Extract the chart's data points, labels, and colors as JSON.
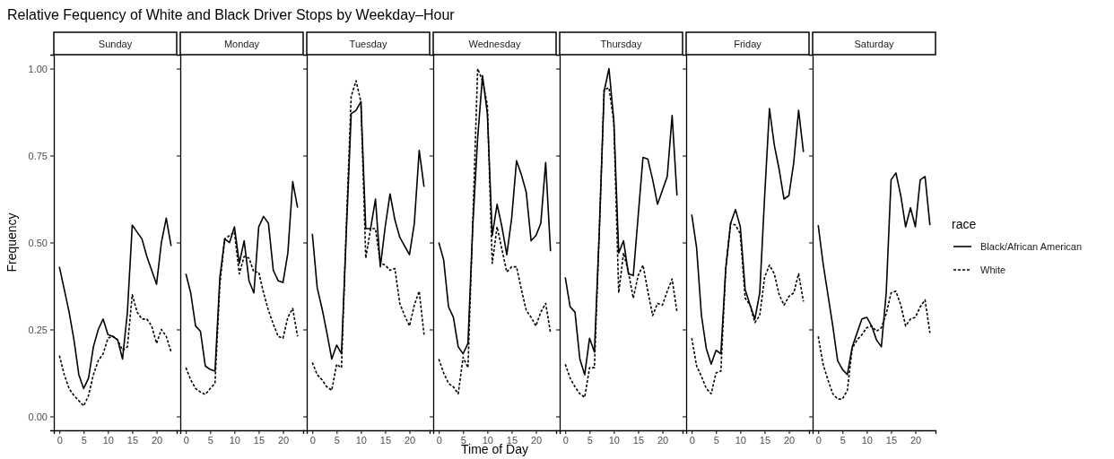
{
  "chart_data": [
    {
      "type": "line",
      "title": "Sunday",
      "annotations": [
        "Relative Fequency of White and Black Driver Stops by Weekday–Hour"
      ],
      "ylabel": "Frequency",
      "x": [
        0,
        1,
        2,
        3,
        4,
        5,
        6,
        7,
        8,
        9,
        10,
        11,
        12,
        13,
        14,
        15,
        16,
        17,
        18,
        19,
        20,
        21,
        22,
        23
      ],
      "xlim": [
        -1.15,
        24.15
      ],
      "xticks": [
        0,
        5,
        10,
        15,
        20
      ],
      "ylim": [
        -0.04,
        1.04
      ],
      "yticks": [
        {
          "value": 0,
          "label": "0.00"
        },
        {
          "value": 0.25,
          "label": "0.25"
        },
        {
          "value": 0.5,
          "label": "0.50"
        },
        {
          "value": 0.75,
          "label": "0.75"
        },
        {
          "value": 1,
          "label": "1.00"
        }
      ],
      "grid": false,
      "legend": false,
      "series": [
        {
          "color": "#000000",
          "line_style": "solid",
          "values": [
            0.43,
            0.365,
            0.3,
            0.22,
            0.12,
            0.08,
            0.11,
            0.2,
            0.25,
            0.28,
            0.235,
            0.23,
            0.22,
            0.165,
            0.3,
            0.55,
            0.53,
            0.51,
            0.46,
            0.42,
            0.38,
            0.5,
            0.57,
            0.49
          ]
        },
        {
          "color": "#000000",
          "line_style": "dashed",
          "values": [
            0.175,
            0.12,
            0.08,
            0.06,
            0.045,
            0.03,
            0.06,
            0.12,
            0.16,
            0.18,
            0.225,
            0.23,
            0.22,
            0.19,
            0.2,
            0.35,
            0.3,
            0.28,
            0.28,
            0.26,
            0.21,
            0.25,
            0.23,
            0.185
          ]
        }
      ]
    },
    {
      "type": "line",
      "title": "Monday",
      "x": [
        0,
        1,
        2,
        3,
        4,
        5,
        6,
        7,
        8,
        9,
        10,
        11,
        12,
        13,
        14,
        15,
        16,
        17,
        18,
        19,
        20,
        21,
        22,
        23
      ],
      "xlim": [
        -1.15,
        24.15
      ],
      "xticks": [
        0,
        5,
        10,
        15,
        20
      ],
      "ylim": [
        -0.04,
        1.04
      ],
      "yticks": [
        0,
        0.25,
        0.5,
        0.75,
        1
      ],
      "tick_labels": "x",
      "grid": false,
      "legend": false,
      "series": [
        {
          "color": "#000000",
          "line_style": "solid",
          "values": [
            0.41,
            0.355,
            0.26,
            0.245,
            0.145,
            0.135,
            0.13,
            0.4,
            0.51,
            0.5,
            0.545,
            0.44,
            0.505,
            0.39,
            0.355,
            0.545,
            0.575,
            0.555,
            0.42,
            0.39,
            0.385,
            0.47,
            0.675,
            0.6
          ]
        },
        {
          "color": "#000000",
          "line_style": "dashed",
          "values": [
            0.14,
            0.105,
            0.08,
            0.07,
            0.063,
            0.08,
            0.095,
            0.38,
            0.51,
            0.52,
            0.53,
            0.41,
            0.46,
            0.455,
            0.415,
            0.415,
            0.355,
            0.305,
            0.265,
            0.23,
            0.225,
            0.285,
            0.31,
            0.23
          ]
        }
      ]
    },
    {
      "type": "line",
      "title": "Tuesday",
      "x": [
        0,
        1,
        2,
        3,
        4,
        5,
        6,
        7,
        8,
        9,
        10,
        11,
        12,
        13,
        14,
        15,
        16,
        17,
        18,
        19,
        20,
        21,
        22,
        23
      ],
      "xlim": [
        -1.15,
        24.15
      ],
      "xticks": [
        0,
        5,
        10,
        15,
        20
      ],
      "ylim": [
        -0.04,
        1.04
      ],
      "yticks": [
        0,
        0.25,
        0.5,
        0.75,
        1
      ],
      "tick_labels": "x",
      "grid": false,
      "legend": false,
      "series": [
        {
          "color": "#000000",
          "line_style": "solid",
          "values": [
            0.525,
            0.37,
            0.31,
            0.24,
            0.165,
            0.205,
            0.18,
            0.53,
            0.87,
            0.88,
            0.905,
            0.54,
            0.54,
            0.625,
            0.43,
            0.545,
            0.64,
            0.565,
            0.515,
            0.49,
            0.465,
            0.555,
            0.765,
            0.66
          ]
        },
        {
          "color": "#000000",
          "line_style": "dashed",
          "values": [
            0.155,
            0.12,
            0.105,
            0.085,
            0.075,
            0.15,
            0.14,
            0.55,
            0.92,
            0.965,
            0.905,
            0.455,
            0.54,
            0.54,
            0.44,
            0.435,
            0.42,
            0.425,
            0.325,
            0.29,
            0.26,
            0.32,
            0.36,
            0.235
          ]
        }
      ]
    },
    {
      "type": "line",
      "title": "Wednesday",
      "xlabel": "Time of Day",
      "x": [
        0,
        1,
        2,
        3,
        4,
        5,
        6,
        7,
        8,
        9,
        10,
        11,
        12,
        13,
        14,
        15,
        16,
        17,
        18,
        19,
        20,
        21,
        22,
        23
      ],
      "xlim": [
        -1.15,
        24.15
      ],
      "xticks": [
        0,
        5,
        10,
        15,
        20
      ],
      "ylim": [
        -0.04,
        1.04
      ],
      "yticks": [
        0,
        0.25,
        0.5,
        0.75,
        1
      ],
      "tick_labels": "x",
      "grid": false,
      "legend": false,
      "series": [
        {
          "color": "#000000",
          "line_style": "solid",
          "values": [
            0.5,
            0.45,
            0.315,
            0.285,
            0.2,
            0.18,
            0.21,
            0.55,
            0.8,
            0.98,
            0.87,
            0.52,
            0.61,
            0.545,
            0.465,
            0.57,
            0.735,
            0.695,
            0.645,
            0.505,
            0.52,
            0.555,
            0.73,
            0.475
          ]
        },
        {
          "color": "#000000",
          "line_style": "dashed",
          "values": [
            0.165,
            0.125,
            0.095,
            0.085,
            0.065,
            0.17,
            0.14,
            0.56,
            1.0,
            0.965,
            0.895,
            0.44,
            0.545,
            0.48,
            0.415,
            0.43,
            0.43,
            0.365,
            0.305,
            0.285,
            0.26,
            0.3,
            0.325,
            0.24
          ]
        }
      ]
    },
    {
      "type": "line",
      "title": "Thursday",
      "x": [
        0,
        1,
        2,
        3,
        4,
        5,
        6,
        7,
        8,
        9,
        10,
        11,
        12,
        13,
        14,
        15,
        16,
        17,
        18,
        19,
        20,
        21,
        22,
        23
      ],
      "xlim": [
        -1.15,
        24.15
      ],
      "xticks": [
        0,
        5,
        10,
        15,
        20
      ],
      "ylim": [
        -0.04,
        1.04
      ],
      "yticks": [
        0,
        0.25,
        0.5,
        0.75,
        1
      ],
      "tick_labels": "x",
      "grid": false,
      "legend": false,
      "series": [
        {
          "color": "#000000",
          "line_style": "solid",
          "values": [
            0.4,
            0.315,
            0.3,
            0.165,
            0.12,
            0.225,
            0.185,
            0.53,
            0.935,
            1.0,
            0.85,
            0.47,
            0.505,
            0.41,
            0.405,
            0.575,
            0.745,
            0.74,
            0.68,
            0.61,
            0.65,
            0.69,
            0.865,
            0.635
          ]
        },
        {
          "color": "#000000",
          "line_style": "dashed",
          "values": [
            0.15,
            0.11,
            0.085,
            0.065,
            0.055,
            0.14,
            0.14,
            0.53,
            0.94,
            0.945,
            0.845,
            0.355,
            0.47,
            0.415,
            0.34,
            0.405,
            0.435,
            0.36,
            0.29,
            0.325,
            0.32,
            0.36,
            0.395,
            0.3
          ]
        }
      ]
    },
    {
      "type": "line",
      "title": "Friday",
      "x": [
        0,
        1,
        2,
        3,
        4,
        5,
        6,
        7,
        8,
        9,
        10,
        11,
        12,
        13,
        14,
        15,
        16,
        17,
        18,
        19,
        20,
        21,
        22,
        23
      ],
      "xlim": [
        -1.15,
        24.15
      ],
      "xticks": [
        0,
        5,
        10,
        15,
        20
      ],
      "ylim": [
        -0.04,
        1.04
      ],
      "yticks": [
        0,
        0.25,
        0.5,
        0.75,
        1
      ],
      "tick_labels": "x",
      "grid": false,
      "legend": false,
      "series": [
        {
          "color": "#000000",
          "line_style": "solid",
          "values": [
            0.58,
            0.485,
            0.29,
            0.195,
            0.15,
            0.19,
            0.18,
            0.425,
            0.555,
            0.595,
            0.545,
            0.365,
            0.32,
            0.28,
            0.355,
            0.63,
            0.885,
            0.78,
            0.71,
            0.625,
            0.635,
            0.73,
            0.88,
            0.76
          ]
        },
        {
          "color": "#000000",
          "line_style": "dashed",
          "values": [
            0.225,
            0.145,
            0.115,
            0.08,
            0.065,
            0.125,
            0.13,
            0.425,
            0.555,
            0.55,
            0.525,
            0.34,
            0.32,
            0.27,
            0.29,
            0.4,
            0.435,
            0.41,
            0.35,
            0.32,
            0.345,
            0.355,
            0.41,
            0.33
          ]
        }
      ]
    },
    {
      "type": "line",
      "title": "Saturday",
      "legend_title": "race",
      "x": [
        0,
        1,
        2,
        3,
        4,
        5,
        6,
        7,
        8,
        9,
        10,
        11,
        12,
        13,
        14,
        15,
        16,
        17,
        18,
        19,
        20,
        21,
        22,
        23
      ],
      "xlim": [
        -1.15,
        24.15
      ],
      "xticks": [
        0,
        5,
        10,
        15,
        20
      ],
      "ylim": [
        -0.04,
        1.04
      ],
      "yticks": [
        0,
        0.25,
        0.5,
        0.75,
        1
      ],
      "tick_labels": "x",
      "grid": false,
      "legend": "right",
      "series": [
        {
          "name": "Black/African American",
          "color": "#000000",
          "line_style": "solid",
          "values": [
            0.55,
            0.44,
            0.35,
            0.26,
            0.16,
            0.135,
            0.12,
            0.2,
            0.24,
            0.28,
            0.285,
            0.26,
            0.22,
            0.2,
            0.355,
            0.68,
            0.7,
            0.635,
            0.545,
            0.6,
            0.545,
            0.68,
            0.69,
            0.55
          ]
        },
        {
          "name": "White",
          "color": "#000000",
          "line_style": "dashed",
          "values": [
            0.23,
            0.15,
            0.105,
            0.065,
            0.05,
            0.05,
            0.075,
            0.195,
            0.22,
            0.235,
            0.255,
            0.26,
            0.245,
            0.255,
            0.295,
            0.355,
            0.36,
            0.32,
            0.26,
            0.28,
            0.285,
            0.315,
            0.335,
            0.24
          ]
        }
      ]
    }
  ]
}
